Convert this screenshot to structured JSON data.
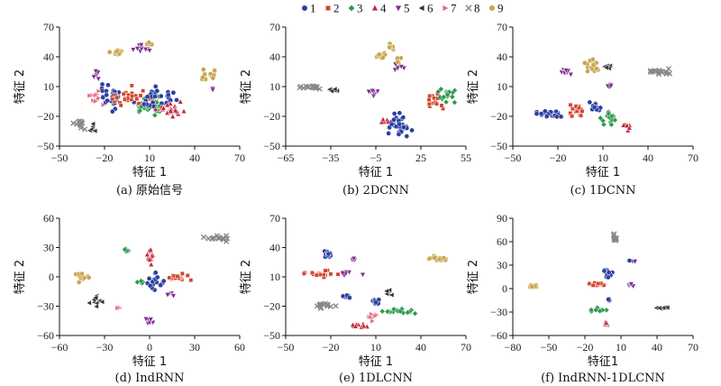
{
  "legend": {
    "items": [
      {
        "label": "1",
        "color": "#2b3fa3",
        "marker": "circle"
      },
      {
        "label": "2",
        "color": "#d2462e",
        "marker": "square"
      },
      {
        "label": "3",
        "color": "#2e9a4b",
        "marker": "diamond"
      },
      {
        "label": "4",
        "color": "#c0283b",
        "marker": "triangle-up"
      },
      {
        "label": "5",
        "color": "#7b2f8f",
        "marker": "triangle-down"
      },
      {
        "label": "6",
        "color": "#333333",
        "marker": "triangle-left"
      },
      {
        "label": "7",
        "color": "#e36a7c",
        "marker": "triangle-right"
      },
      {
        "label": "8",
        "color": "#888888",
        "marker": "x"
      },
      {
        "label": "9",
        "color": "#c9a64f",
        "marker": "circle"
      }
    ]
  },
  "chart_data": [
    {
      "type": "scatter",
      "caption": "(a) 原始信号",
      "xlabel": "特征 1",
      "ylabel": "特征 2",
      "xlim": [
        -50,
        70
      ],
      "ylim": [
        -50,
        70
      ],
      "xticks": [
        "−50",
        "−20",
        "10",
        "40",
        "70"
      ],
      "yticks": [
        "70",
        "40",
        "10",
        "−20",
        "−50"
      ],
      "clusters": [
        {
          "series": "9",
          "x": -12,
          "y": 44,
          "sx": 4,
          "sy": 3,
          "n": 10
        },
        {
          "series": "5",
          "x": 5,
          "y": 48,
          "sx": 5,
          "sy": 4,
          "n": 12
        },
        {
          "series": "9",
          "x": 10,
          "y": 53,
          "sx": 2,
          "sy": 1,
          "n": 5
        },
        {
          "series": "9",
          "x": 50,
          "y": 22,
          "sx": 6,
          "sy": 4,
          "n": 14
        },
        {
          "series": "5",
          "x": 52,
          "y": 8,
          "sx": 1,
          "sy": 2,
          "n": 3
        },
        {
          "series": "8",
          "x": -38,
          "y": -28,
          "sx": 4,
          "sy": 5,
          "n": 12
        },
        {
          "series": "6",
          "x": -28,
          "y": -32,
          "sx": 3,
          "sy": 3,
          "n": 6
        },
        {
          "series": "7",
          "x": -25,
          "y": 0,
          "sx": 4,
          "sy": 6,
          "n": 10
        },
        {
          "series": "1",
          "x": -15,
          "y": 0,
          "sx": 9,
          "sy": 10,
          "n": 30
        },
        {
          "series": "2",
          "x": 0,
          "y": -2,
          "sx": 12,
          "sy": 8,
          "n": 30
        },
        {
          "series": "3",
          "x": 10,
          "y": -10,
          "sx": 10,
          "sy": 8,
          "n": 30
        },
        {
          "series": "1",
          "x": 15,
          "y": -2,
          "sx": 12,
          "sy": 8,
          "n": 28
        },
        {
          "series": "4",
          "x": 22,
          "y": -14,
          "sx": 9,
          "sy": 6,
          "n": 22
        },
        {
          "series": "5",
          "x": -25,
          "y": 20,
          "sx": 2,
          "sy": 5,
          "n": 6
        }
      ]
    },
    {
      "type": "scatter",
      "caption": "(b) 2DCNN",
      "xlabel": "特征 1",
      "ylabel": "特征 2",
      "xlim": [
        -65,
        55
      ],
      "ylim": [
        -50,
        70
      ],
      "xticks": [
        "−65",
        "−35",
        "−5",
        "25",
        "55"
      ],
      "yticks": [
        "70",
        "40",
        "10",
        "−20",
        "−50"
      ],
      "clusters": [
        {
          "series": "8",
          "x": -50,
          "y": 9,
          "sx": 7,
          "sy": 2,
          "n": 16
        },
        {
          "series": "6",
          "x": -32,
          "y": 7,
          "sx": 4,
          "sy": 2,
          "n": 6
        },
        {
          "series": "5",
          "x": -7,
          "y": 4,
          "sx": 4,
          "sy": 3,
          "n": 8
        },
        {
          "series": "9",
          "x": -2,
          "y": 42,
          "sx": 4,
          "sy": 3,
          "n": 10
        },
        {
          "series": "9",
          "x": 5,
          "y": 50,
          "sx": 2,
          "sy": 3,
          "n": 6
        },
        {
          "series": "5",
          "x": 10,
          "y": 30,
          "sx": 3,
          "sy": 3,
          "n": 8
        },
        {
          "series": "9",
          "x": 10,
          "y": 37,
          "sx": 2,
          "sy": 3,
          "n": 5
        },
        {
          "series": "4",
          "x": 0,
          "y": -25,
          "sx": 4,
          "sy": 3,
          "n": 8
        },
        {
          "series": "1",
          "x": 10,
          "y": -28,
          "sx": 6,
          "sy": 8,
          "n": 34
        },
        {
          "series": "2",
          "x": 35,
          "y": -5,
          "sx": 4,
          "sy": 6,
          "n": 14
        },
        {
          "series": "3",
          "x": 42,
          "y": 2,
          "sx": 5,
          "sy": 6,
          "n": 20
        }
      ]
    },
    {
      "type": "scatter",
      "caption": "(c) 1DCNN",
      "xlabel": "特征 1",
      "ylabel": "特征 2",
      "xlim": [
        -50,
        70
      ],
      "ylim": [
        -50,
        70
      ],
      "xticks": [
        "−50",
        "−20",
        "10",
        "40",
        "70"
      ],
      "yticks": [
        "70",
        "40",
        "10",
        "−20",
        "−50"
      ],
      "clusters": [
        {
          "series": "9",
          "x": 3,
          "y": 33,
          "sx": 4,
          "sy": 7,
          "n": 16
        },
        {
          "series": "5",
          "x": -15,
          "y": 25,
          "sx": 4,
          "sy": 2,
          "n": 8
        },
        {
          "series": "6",
          "x": 12,
          "y": 30,
          "sx": 3,
          "sy": 2,
          "n": 6
        },
        {
          "series": "5",
          "x": 14,
          "y": 11,
          "sx": 2,
          "sy": 2,
          "n": 5
        },
        {
          "series": "8",
          "x": 48,
          "y": 25,
          "sx": 7,
          "sy": 2,
          "n": 16
        },
        {
          "series": "1",
          "x": -25,
          "y": -18,
          "sx": 9,
          "sy": 3,
          "n": 24
        },
        {
          "series": "2",
          "x": -8,
          "y": -14,
          "sx": 6,
          "sy": 4,
          "n": 18
        },
        {
          "series": "1",
          "x": 5,
          "y": -10,
          "sx": 4,
          "sy": 5,
          "n": 14
        },
        {
          "series": "3",
          "x": 15,
          "y": -22,
          "sx": 5,
          "sy": 5,
          "n": 18
        },
        {
          "series": "4",
          "x": 25,
          "y": -30,
          "sx": 3,
          "sy": 3,
          "n": 8
        }
      ]
    },
    {
      "type": "scatter",
      "caption": "(d) IndRNN",
      "xlabel": "特征 1",
      "ylabel": "特征 2",
      "xlim": [
        -60,
        60
      ],
      "ylim": [
        -60,
        60
      ],
      "xticks": [
        "−60",
        "−30",
        "0",
        "30",
        "60"
      ],
      "yticks": [
        "60",
        "30",
        "0",
        "−30",
        "−60"
      ],
      "clusters": [
        {
          "series": "8",
          "x": 45,
          "y": 40,
          "sx": 7,
          "sy": 2,
          "n": 16
        },
        {
          "series": "3",
          "x": -15,
          "y": 28,
          "sx": 2,
          "sy": 4,
          "n": 8
        },
        {
          "series": "4",
          "x": 0,
          "y": 20,
          "sx": 3,
          "sy": 8,
          "n": 12
        },
        {
          "series": "9",
          "x": -45,
          "y": 0,
          "sx": 4,
          "sy": 4,
          "n": 12
        },
        {
          "series": "6",
          "x": -35,
          "y": -25,
          "sx": 4,
          "sy": 4,
          "n": 10
        },
        {
          "series": "7",
          "x": -20,
          "y": -31,
          "sx": 1,
          "sy": 1,
          "n": 3
        },
        {
          "series": "1",
          "x": 5,
          "y": -5,
          "sx": 4,
          "sy": 8,
          "n": 18
        },
        {
          "series": "2",
          "x": 20,
          "y": 0,
          "sx": 7,
          "sy": 3,
          "n": 16
        },
        {
          "series": "5",
          "x": 0,
          "y": -45,
          "sx": 2,
          "sy": 5,
          "n": 8
        },
        {
          "series": "5",
          "x": 14,
          "y": -18,
          "sx": 2,
          "sy": 2,
          "n": 5
        },
        {
          "series": "3",
          "x": -5,
          "y": -5,
          "sx": 2,
          "sy": 3,
          "n": 5
        }
      ]
    },
    {
      "type": "scatter",
      "caption": "(e) 1DLCNN",
      "xlabel": "特征 1",
      "ylabel": "特征 2",
      "xlim": [
        -50,
        70
      ],
      "ylim": [
        -50,
        70
      ],
      "xticks": [
        "−50",
        "−20",
        "10",
        "40",
        "70"
      ],
      "yticks": [
        "70",
        "40",
        "10",
        "−20",
        "−50"
      ],
      "clusters": [
        {
          "series": "1",
          "x": -22,
          "y": 33,
          "sx": 3,
          "sy": 4,
          "n": 14
        },
        {
          "series": "5",
          "x": -5,
          "y": 28,
          "sx": 2,
          "sy": 2,
          "n": 5
        },
        {
          "series": "9",
          "x": 50,
          "y": 28,
          "sx": 6,
          "sy": 2,
          "n": 16
        },
        {
          "series": "2",
          "x": -25,
          "y": 12,
          "sx": 8,
          "sy": 3,
          "n": 18
        },
        {
          "series": "5",
          "x": -8,
          "y": 14,
          "sx": 5,
          "sy": 2,
          "n": 8
        },
        {
          "series": "8",
          "x": -25,
          "y": -20,
          "sx": 7,
          "sy": 3,
          "n": 14
        },
        {
          "series": "6",
          "x": 18,
          "y": -5,
          "sx": 3,
          "sy": 4,
          "n": 8
        },
        {
          "series": "1",
          "x": -10,
          "y": -10,
          "sx": 3,
          "sy": 2,
          "n": 6
        },
        {
          "series": "7",
          "x": 8,
          "y": -30,
          "sx": 3,
          "sy": 3,
          "n": 8
        },
        {
          "series": "4",
          "x": 0,
          "y": -40,
          "sx": 4,
          "sy": 2,
          "n": 10
        },
        {
          "series": "3",
          "x": 25,
          "y": -25,
          "sx": 8,
          "sy": 3,
          "n": 18
        },
        {
          "series": "1",
          "x": 10,
          "y": -15,
          "sx": 3,
          "sy": 3,
          "n": 8
        }
      ]
    },
    {
      "type": "scatter",
      "caption": "(f) IndRNN-1DLCNN",
      "xlabel": "特征1",
      "ylabel": "特征 2",
      "xlim": [
        -80,
        70
      ],
      "ylim": [
        -60,
        90
      ],
      "xticks": [
        "−80",
        "−50",
        "−20",
        "10",
        "40",
        "70"
      ],
      "yticks": [
        "90",
        "60",
        "30",
        "0",
        "−30",
        "−60"
      ],
      "clusters": [
        {
          "series": "8",
          "x": 5,
          "y": 65,
          "sx": 2,
          "sy": 4,
          "n": 10
        },
        {
          "series": "5",
          "x": 20,
          "y": 35,
          "sx": 2,
          "sy": 1,
          "n": 3
        },
        {
          "series": "1",
          "x": 16,
          "y": 36,
          "sx": 1,
          "sy": 1,
          "n": 1
        },
        {
          "series": "9",
          "x": -63,
          "y": 3,
          "sx": 4,
          "sy": 2,
          "n": 10
        },
        {
          "series": "1",
          "x": 0,
          "y": 20,
          "sx": 3,
          "sy": 5,
          "n": 12
        },
        {
          "series": "2",
          "x": -10,
          "y": 5,
          "sx": 6,
          "sy": 2,
          "n": 12
        },
        {
          "series": "5",
          "x": 18,
          "y": 5,
          "sx": 2,
          "sy": 2,
          "n": 5
        },
        {
          "series": "3",
          "x": -8,
          "y": -28,
          "sx": 5,
          "sy": 2,
          "n": 12
        },
        {
          "series": "4",
          "x": -2,
          "y": -43,
          "sx": 2,
          "sy": 4,
          "n": 6
        },
        {
          "series": "6",
          "x": 45,
          "y": -25,
          "sx": 5,
          "sy": 1,
          "n": 12
        },
        {
          "series": "1",
          "x": 0,
          "y": -15,
          "sx": 2,
          "sy": 2,
          "n": 4
        }
      ]
    }
  ]
}
